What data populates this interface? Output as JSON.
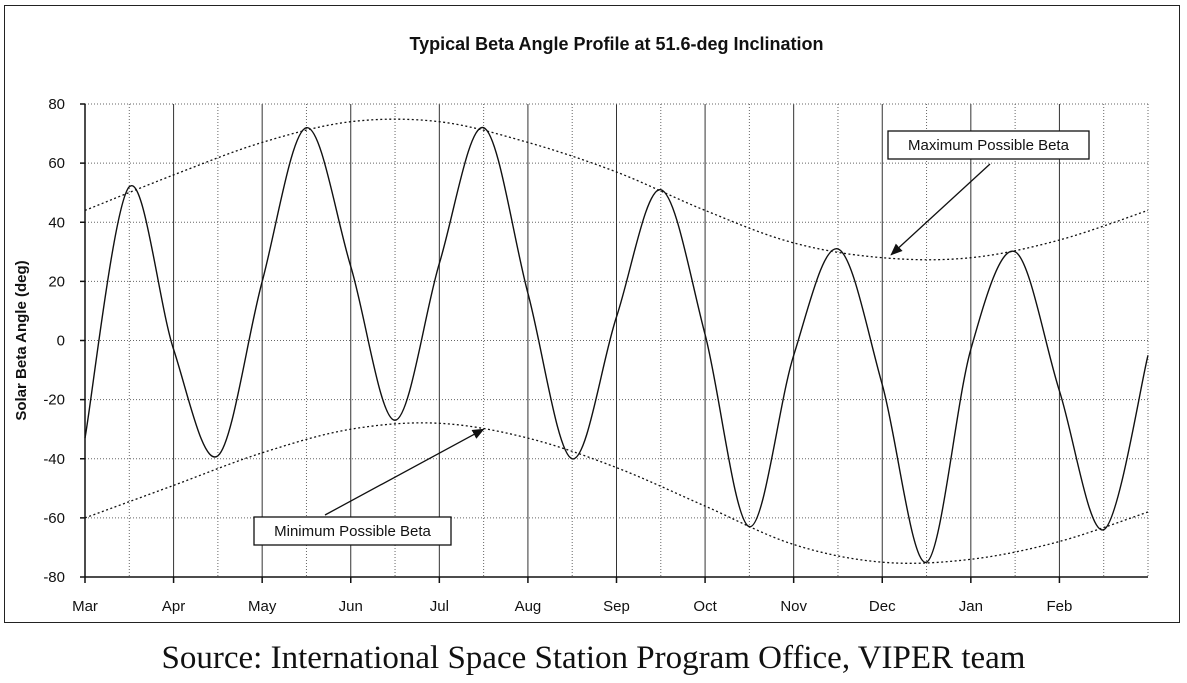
{
  "chart_data": {
    "type": "line",
    "title": "Typical Beta Angle Profile at 51.6-deg Inclination",
    "xlabel": "",
    "ylabel": "Solar Beta Angle (deg)",
    "ylim": [
      -80,
      80
    ],
    "yticks": [
      80,
      60,
      40,
      20,
      0,
      -20,
      -40,
      -60,
      -80
    ],
    "categories": [
      "Mar",
      "Apr",
      "May",
      "Jun",
      "Jul",
      "Aug",
      "Sep",
      "Oct",
      "Nov",
      "Dec",
      "Jan",
      "Feb"
    ],
    "grid": true,
    "series": [
      {
        "name": "",
        "style": "solid",
        "x": [
          0.0,
          0.5,
          1.0,
          1.5,
          2.0,
          2.5,
          3.0,
          3.5,
          4.0,
          4.5,
          5.0,
          5.5,
          6.0,
          6.5,
          7.0,
          7.5,
          8.0,
          8.5,
          9.0,
          9.5,
          10.0,
          10.5,
          11.0,
          11.5,
          12.0
        ],
        "values": [
          -33,
          52,
          -3,
          -39,
          20,
          72,
          25,
          -27,
          26,
          72,
          16,
          -40,
          8,
          51,
          2,
          -63,
          -5,
          31,
          -15,
          -75,
          -3,
          30,
          -17,
          -64,
          -5
        ]
      },
      {
        "name": "Maximum Possible Beta",
        "style": "dotted",
        "x": [
          0,
          1,
          2,
          3,
          4,
          5,
          6,
          7,
          8,
          9,
          10,
          11,
          12
        ],
        "values": [
          44,
          56,
          67,
          74,
          74,
          67,
          57,
          44,
          33,
          28,
          28,
          34,
          44
        ]
      },
      {
        "name": "Minimum Possible Beta",
        "style": "dotted",
        "x": [
          0,
          1,
          2,
          3,
          4,
          5,
          6,
          7,
          8,
          9,
          10,
          11,
          12
        ],
        "values": [
          -60,
          -49,
          -38,
          -30,
          -28,
          -33,
          -43,
          -56,
          -69,
          -75,
          -74,
          -68,
          -58
        ]
      }
    ],
    "annotations": [
      {
        "text": "Maximum Possible Beta",
        "target": [
          9.1,
          29
        ]
      },
      {
        "text": "Minimum Possible Beta",
        "target": [
          4.5,
          -30
        ]
      }
    ],
    "line_color": "#111111"
  },
  "caption": "Source: International Space Station Program Office, VIPER team"
}
